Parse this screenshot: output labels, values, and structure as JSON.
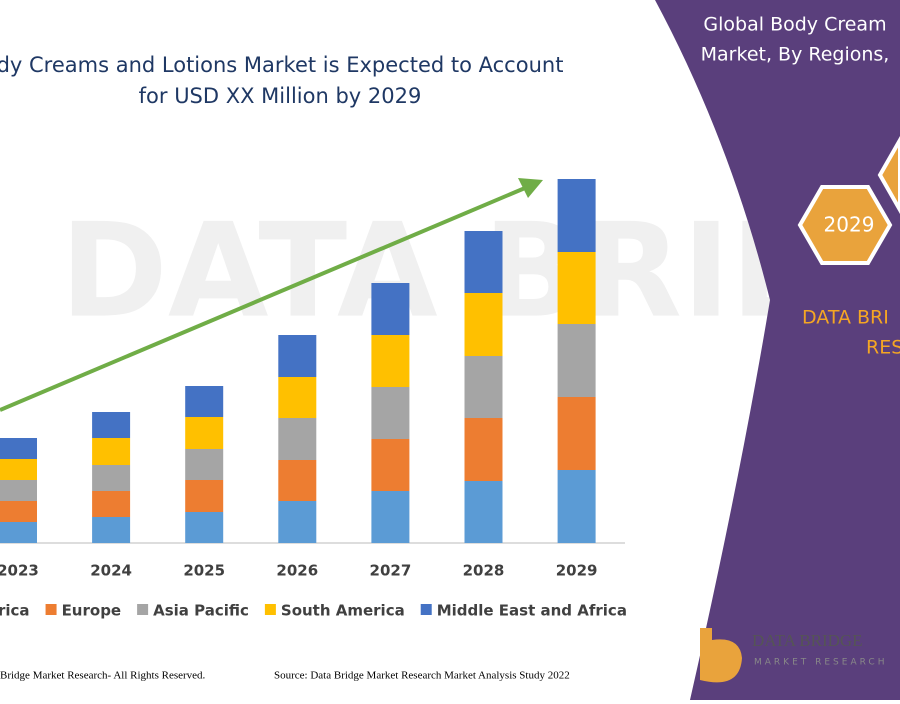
{
  "chart_data": {
    "type": "stacked-bar",
    "title": [
      "dy Creams and Lotions Market is Expected to Account",
      "for USD XX Million by 2029"
    ],
    "categories": [
      "2023",
      "2024",
      "2025",
      "2026",
      "2027",
      "2028",
      "2029"
    ],
    "series": [
      {
        "name": "rica",
        "color": "#5b9bd5",
        "values": [
          21,
          26,
          31,
          42,
          52,
          62,
          73
        ]
      },
      {
        "name": "Europe",
        "color": "#ed7d31",
        "values": [
          21,
          26,
          32,
          41,
          52,
          63,
          73
        ]
      },
      {
        "name": "Asia Pacific",
        "color": "#a5a5a5",
        "values": [
          21,
          26,
          31,
          42,
          52,
          62,
          73
        ]
      },
      {
        "name": "South America",
        "color": "#ffc000",
        "values": [
          21,
          27,
          32,
          41,
          52,
          63,
          72
        ]
      },
      {
        "name": "Middle East and Africa",
        "color": "#4472c4",
        "values": [
          21,
          26,
          31,
          42,
          52,
          62,
          73
        ]
      }
    ]
  },
  "panel": {
    "title": [
      "Global Body Cream",
      "Market, By Regions,"
    ],
    "hexagon": "2029",
    "brand": [
      "DATA BRI",
      "RES"
    ]
  },
  "footer": {
    "copyright": "Bridge Market Research- All Rights Reserved.",
    "source": "Source: Data Bridge Market Research Market Analysis Study 2022"
  },
  "logo": {
    "name": "DATA BRIDGE",
    "tagline": "MARKET RESEARCH"
  }
}
